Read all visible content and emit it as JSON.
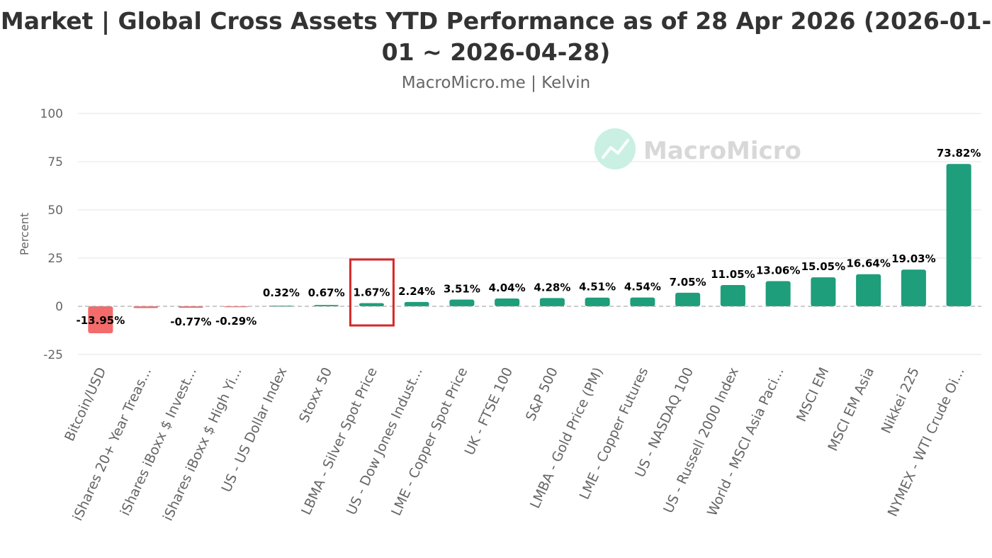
{
  "chart_data": {
    "type": "bar",
    "title": "Market | Global Cross Assets YTD Performance as of 28 Apr 2026 (2026-01-01 ~ 2026-04-28)",
    "subtitle": "MacroMicro.me | Kelvin",
    "ylabel": "Percent",
    "ylim": [
      -25,
      100
    ],
    "yticks": [
      100,
      75,
      50,
      25,
      0,
      -25
    ],
    "grid": true,
    "legend": "none",
    "watermark": "MacroMicro",
    "categories": [
      "Bitcoin/USD",
      "iShares 20+ Year Treas...",
      "iShares iBoxx $ Invest...",
      "iShares iBoxx $ High Yi...",
      "US - US Dollar Index",
      "Stoxx 50",
      "LBMA - Silver Spot Price",
      "US - Dow Jones Indust...",
      "LME - Copper Spot Price",
      "UK - FTSE 100",
      "S&P 500",
      "LMBA - Gold Price (PM)",
      "LME - Copper Futures",
      "US - NASDAQ 100",
      "US - Russell 2000 Index",
      "World - MSCI Asia Paci...",
      "MSCI EM",
      "MSCI EM Asia",
      "Nikkei 225",
      "NYMEX - WTI Crude Oi..."
    ],
    "values": [
      -13.95,
      -0.9,
      -0.77,
      -0.29,
      0.32,
      0.67,
      1.67,
      2.24,
      3.51,
      4.04,
      4.28,
      4.51,
      4.54,
      7.05,
      11.05,
      13.06,
      15.05,
      16.64,
      19.03,
      73.82
    ],
    "data_labels": [
      "-13.95%",
      "",
      "-0.77%",
      "-0.29%",
      "0.32%",
      "0.67%",
      "1.67%",
      "2.24%",
      "3.51%",
      "4.04%",
      "4.28%",
      "4.51%",
      "4.54%",
      "7.05%",
      "11.05%",
      "13.06%",
      "15.05%",
      "16.64%",
      "19.03%",
      "73.82%"
    ],
    "highlighted_category": "LBMA - Silver Spot Price",
    "colors": {
      "positive": "#1e9e7b",
      "negative": "#f36b6b",
      "highlight_box": "#d62728",
      "gridline": "#e6e6e6",
      "zero_line": "#999999",
      "watermark": "#d8d8d8",
      "watermark_icon": "#c9f0e3"
    }
  }
}
